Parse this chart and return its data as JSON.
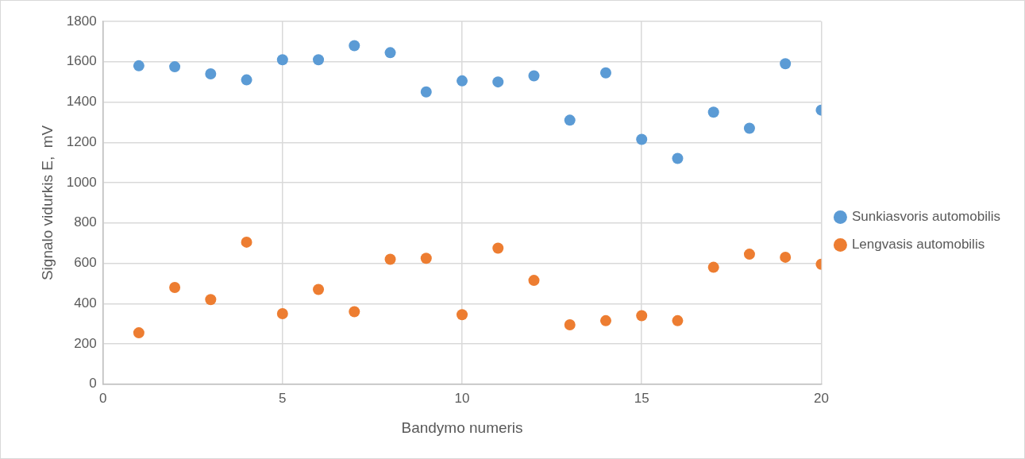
{
  "chart_data": {
    "type": "scatter",
    "xlabel": "Bandymo numeris",
    "ylabel": "Signalo vidurkis E,  mV",
    "x": [
      1,
      2,
      3,
      4,
      5,
      6,
      7,
      8,
      9,
      10,
      11,
      12,
      13,
      14,
      15,
      16,
      17,
      18,
      19,
      20
    ],
    "series": [
      {
        "name": "Sunkiasvoris automobilis",
        "color": "#5b9bd5",
        "values": [
          1580,
          1575,
          1540,
          1510,
          1610,
          1610,
          1680,
          1645,
          1450,
          1505,
          1500,
          1530,
          1310,
          1545,
          1215,
          1120,
          1350,
          1270,
          1590,
          1360
        ]
      },
      {
        "name": "Lengvasis automobilis",
        "color": "#ed7d31",
        "values": [
          255,
          480,
          420,
          705,
          350,
          470,
          360,
          620,
          625,
          345,
          675,
          515,
          295,
          315,
          340,
          315,
          580,
          645,
          630,
          595
        ]
      }
    ],
    "xlim": [
      0,
      20
    ],
    "xticks": [
      0,
      5,
      10,
      15,
      20
    ],
    "ylim": [
      0,
      1800
    ],
    "yticks": [
      0,
      200,
      400,
      600,
      800,
      1000,
      1200,
      1400,
      1600,
      1800
    ],
    "grid": true,
    "legend": "right",
    "marker": "circle"
  }
}
